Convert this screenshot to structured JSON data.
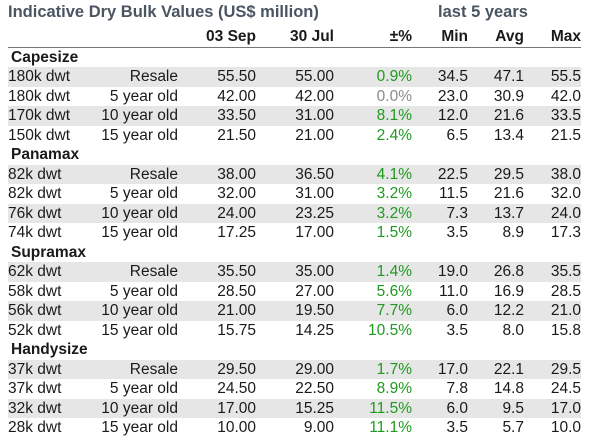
{
  "header": {
    "title": "Indicative Dry Bulk Values (US$ million)",
    "period_label": "last 5 years"
  },
  "columns": [
    "03 Sep",
    "30 Jul",
    "±%",
    "Min",
    "Avg",
    "Max"
  ],
  "groups": [
    {
      "name": "Capesize",
      "rows": [
        {
          "size": "180k dwt",
          "age": "Resale",
          "sep": "55.50",
          "jul": "55.00",
          "pct": "0.9%",
          "min": "34.5",
          "avg": "47.1",
          "max": "55.5"
        },
        {
          "size": "180k dwt",
          "age": "5 year old",
          "sep": "42.00",
          "jul": "42.00",
          "pct": "0.0%",
          "min": "23.0",
          "avg": "30.9",
          "max": "42.0"
        },
        {
          "size": "170k dwt",
          "age": "10 year old",
          "sep": "33.50",
          "jul": "31.00",
          "pct": "8.1%",
          "min": "12.0",
          "avg": "21.6",
          "max": "33.5"
        },
        {
          "size": "150k dwt",
          "age": "15 year old",
          "sep": "21.50",
          "jul": "21.00",
          "pct": "2.4%",
          "min": "6.5",
          "avg": "13.4",
          "max": "21.5"
        }
      ]
    },
    {
      "name": "Panamax",
      "rows": [
        {
          "size": "82k dwt",
          "age": "Resale",
          "sep": "38.00",
          "jul": "36.50",
          "pct": "4.1%",
          "min": "22.5",
          "avg": "29.5",
          "max": "38.0"
        },
        {
          "size": "82k dwt",
          "age": "5 year old",
          "sep": "32.00",
          "jul": "31.00",
          "pct": "3.2%",
          "min": "11.5",
          "avg": "21.6",
          "max": "32.0"
        },
        {
          "size": "76k dwt",
          "age": "10 year old",
          "sep": "24.00",
          "jul": "23.25",
          "pct": "3.2%",
          "min": "7.3",
          "avg": "13.7",
          "max": "24.0"
        },
        {
          "size": "74k dwt",
          "age": "15 year old",
          "sep": "17.25",
          "jul": "17.00",
          "pct": "1.5%",
          "min": "3.5",
          "avg": "8.9",
          "max": "17.3"
        }
      ]
    },
    {
      "name": "Supramax",
      "rows": [
        {
          "size": "62k dwt",
          "age": "Resale",
          "sep": "35.50",
          "jul": "35.00",
          "pct": "1.4%",
          "min": "19.0",
          "avg": "26.8",
          "max": "35.5"
        },
        {
          "size": "58k dwt",
          "age": "5 year old",
          "sep": "28.50",
          "jul": "27.00",
          "pct": "5.6%",
          "min": "11.0",
          "avg": "16.9",
          "max": "28.5"
        },
        {
          "size": "56k dwt",
          "age": "10 year old",
          "sep": "21.00",
          "jul": "19.50",
          "pct": "7.7%",
          "min": "6.0",
          "avg": "12.2",
          "max": "21.0"
        },
        {
          "size": "52k dwt",
          "age": "15 year old",
          "sep": "15.75",
          "jul": "14.25",
          "pct": "10.5%",
          "min": "3.5",
          "avg": "8.0",
          "max": "15.8"
        }
      ]
    },
    {
      "name": "Handysize",
      "rows": [
        {
          "size": "37k dwt",
          "age": "Resale",
          "sep": "29.50",
          "jul": "29.00",
          "pct": "1.7%",
          "min": "17.0",
          "avg": "22.1",
          "max": "29.5"
        },
        {
          "size": "37k dwt",
          "age": "5 year old",
          "sep": "24.50",
          "jul": "22.50",
          "pct": "8.9%",
          "min": "7.8",
          "avg": "14.8",
          "max": "24.5"
        },
        {
          "size": "32k dwt",
          "age": "10 year old",
          "sep": "17.00",
          "jul": "15.25",
          "pct": "11.5%",
          "min": "6.0",
          "avg": "9.5",
          "max": "17.0"
        },
        {
          "size": "28k dwt",
          "age": "15 year old",
          "sep": "10.00",
          "jul": "9.00",
          "pct": "11.1%",
          "min": "3.5",
          "avg": "5.7",
          "max": "10.0"
        }
      ]
    }
  ],
  "colors": {
    "positive": "#1e9a1e",
    "neutral": "#8a8a8a",
    "title": "#4a5562",
    "shade": "#e6e6e6"
  }
}
